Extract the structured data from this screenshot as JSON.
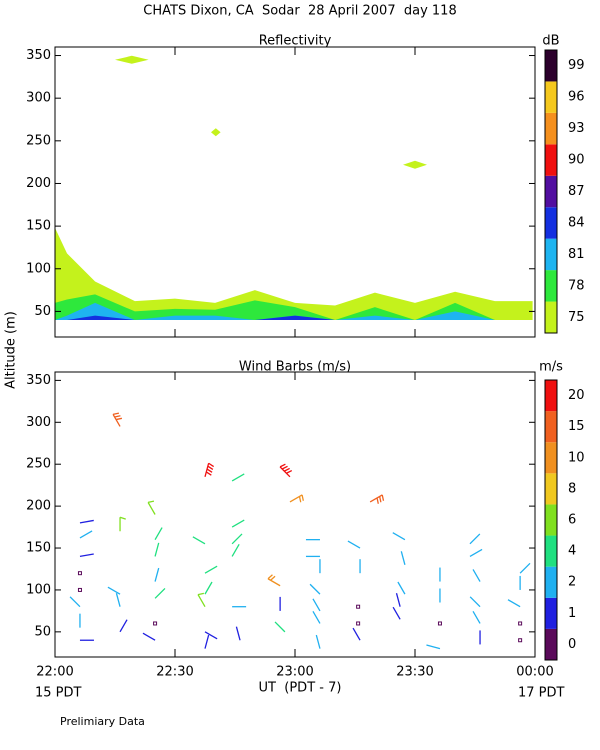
{
  "figure": {
    "title": "CHATS Dixon, CA  Sodar  28 April 2007  day 118",
    "xlabel": "UT  (PDT - 7)",
    "ylabel": "Altitude (m)",
    "x_sublabels": [
      "15 PDT",
      "17 PDT"
    ],
    "footer": "Prelimiary Data"
  },
  "chart_data": [
    {
      "type": "contour",
      "title": "Reflectivity",
      "xlim": [
        22,
        24
      ],
      "xticks": [
        {
          "value": 22,
          "label": "22:00"
        },
        {
          "value": 22.5,
          "label": "22:30"
        },
        {
          "value": 23,
          "label": "23:00"
        },
        {
          "value": 23.5,
          "label": "23:30"
        },
        {
          "value": 24,
          "label": "00:00"
        }
      ],
      "ylim": [
        20,
        360
      ],
      "yticks": [
        50,
        100,
        150,
        200,
        250,
        300,
        350
      ],
      "colorbar": {
        "label": "dB",
        "levels": [
          75,
          78,
          81,
          84,
          87,
          90,
          93,
          96,
          99
        ],
        "colors": [
          "#c4f21c",
          "#2ee83c",
          "#1eb4f0",
          "#1430e0",
          "#520fa0",
          "#f01010",
          "#f5901e",
          "#f5c81e",
          "#2c002c"
        ]
      },
      "x": [
        22,
        22.05,
        22.167,
        22.333,
        22.5,
        22.667,
        22.833,
        23,
        23.167,
        23.333,
        23.5,
        23.667,
        23.833,
        23.99
      ],
      "baseline": 40,
      "series": [
        {
          "name": "75",
          "color": "#c4f21c",
          "values": [
            148,
            118,
            85,
            62,
            65,
            60,
            75,
            60,
            57,
            72,
            60,
            73,
            62,
            62
          ]
        },
        {
          "name": "78",
          "color": "#2ee83c",
          "values": [
            60,
            64,
            70,
            50,
            53,
            52,
            63,
            55,
            40,
            55,
            40,
            60,
            40,
            40
          ]
        },
        {
          "name": "81",
          "color": "#1eb4f0",
          "values": [
            40,
            45,
            60,
            40,
            45,
            45,
            40,
            45,
            40,
            45,
            40,
            50,
            40,
            40
          ]
        },
        {
          "name": "84",
          "color": "#1430e0",
          "values": [
            40,
            40,
            45,
            40,
            40,
            40,
            40,
            45,
            40,
            40,
            40,
            40,
            40,
            40
          ]
        }
      ],
      "patches": {
        "color": "#c4f21c",
        "x_extent": [
          [
            22.25,
            22.39
          ],
          [
            22.65,
            22.69
          ],
          [
            23.45,
            23.55
          ]
        ],
        "y": [
          345,
          260,
          222
        ]
      }
    },
    {
      "type": "barbs",
      "title": "Wind Barbs (m/s)",
      "xlim": [
        22,
        24
      ],
      "xticks": [
        {
          "value": 22,
          "label": "22:00"
        },
        {
          "value": 22.5,
          "label": "22:30"
        },
        {
          "value": 23,
          "label": "23:00"
        },
        {
          "value": 23.5,
          "label": "23:30"
        },
        {
          "value": 24,
          "label": "00:00"
        }
      ],
      "ylim": [
        20,
        360
      ],
      "yticks": [
        50,
        100,
        150,
        200,
        250,
        300,
        350
      ],
      "colorbar": {
        "label": "m/s",
        "levels": [
          0,
          1,
          2,
          4,
          6,
          8,
          10,
          15,
          20
        ],
        "colors": [
          "#5a0a5a",
          "#2020e0",
          "#20b0f0",
          "#20e080",
          "#80e020",
          "#f0c820",
          "#f09020",
          "#f06020",
          "#f01010"
        ]
      },
      "x": [
        22.104,
        22.104,
        22.104,
        22.104,
        22.104,
        22.104,
        22.104,
        22.104,
        22.271,
        22.271,
        22.271,
        22.271,
        22.271,
        22.417,
        22.417,
        22.417,
        22.417,
        22.417,
        22.417,
        22.417,
        22.625,
        22.625,
        22.625,
        22.625,
        22.625,
        22.625,
        22.625,
        22.738,
        22.738,
        22.738,
        22.738,
        22.738,
        22.771,
        22.979,
        22.979,
        22.938,
        22.938,
        22.958,
        23.104,
        23.104,
        23.104,
        23.104,
        23.104,
        23.104,
        23.104,
        23.313,
        23.271,
        23.271,
        23.263,
        23.263,
        23.271,
        23.458,
        23.458,
        23.458,
        23.438,
        23.438,
        23.604,
        23.604,
        23.604,
        23.604,
        23.729,
        23.729,
        23.771,
        23.771,
        23.771,
        23.771,
        23.938,
        23.938,
        23.938,
        23.938,
        23.938
      ],
      "y": [
        180,
        162,
        140,
        120,
        100,
        80,
        55,
        40,
        295,
        170,
        95,
        80,
        50,
        190,
        160,
        140,
        110,
        90,
        60,
        40,
        235,
        155,
        120,
        95,
        80,
        50,
        30,
        230,
        175,
        155,
        140,
        80,
        40,
        235,
        205,
        105,
        75,
        50,
        160,
        140,
        120,
        95,
        75,
        60,
        30,
        205,
        150,
        120,
        80,
        60,
        40,
        160,
        130,
        95,
        80,
        65,
        60,
        110,
        85,
        30,
        155,
        140,
        110,
        80,
        60,
        35,
        120,
        100,
        80,
        60,
        40
      ],
      "speed": [
        1.5,
        3,
        1.5,
        0,
        0,
        3,
        3,
        1.5,
        15,
        7,
        3,
        3,
        1.5,
        7,
        4,
        4,
        3,
        4,
        0,
        1.5,
        20,
        4,
        4,
        4,
        6,
        1.5,
        1.5,
        4,
        4,
        4,
        4,
        3,
        1.5,
        20,
        12,
        10,
        1.5,
        4,
        3,
        3,
        3,
        3,
        3,
        3,
        3,
        17,
        3,
        3,
        0,
        0,
        1.5,
        3,
        3,
        3,
        1.5,
        1.5,
        0,
        3,
        3,
        3,
        3,
        3,
        3,
        3,
        3,
        1.5,
        3,
        3,
        3,
        0,
        0
      ],
      "direction": [
        80,
        60,
        80,
        0,
        0,
        315,
        0,
        90,
        330,
        0,
        300,
        345,
        30,
        330,
        30,
        15,
        15,
        45,
        0,
        300,
        15,
        300,
        60,
        30,
        330,
        120,
        15,
        60,
        60,
        45,
        30,
        90,
        345,
        315,
        60,
        300,
        0,
        315,
        270,
        270,
        0,
        315,
        330,
        330,
        345,
        60,
        300,
        0,
        0,
        0,
        330,
        300,
        345,
        330,
        345,
        330,
        0,
        0,
        0,
        285,
        45,
        60,
        330,
        315,
        330,
        0,
        45,
        0,
        300,
        0,
        0
      ]
    }
  ]
}
